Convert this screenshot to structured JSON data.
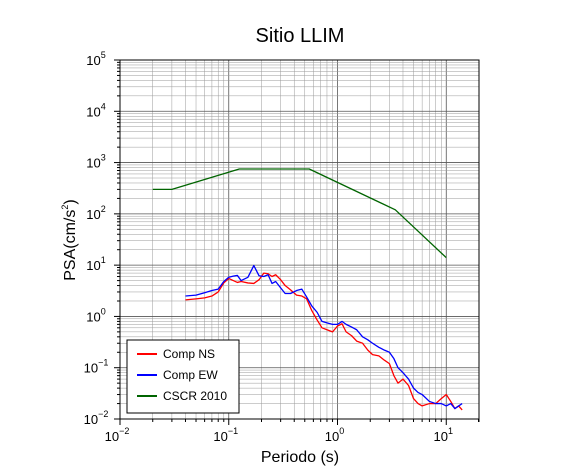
{
  "chart_data": {
    "type": "line",
    "title": "Sitio LLIM",
    "xlabel": "Periodo (s)",
    "ylabel": "PSA(cm/s²)",
    "ylabel_base": "PSA(cm/s",
    "ylabel_sup": "2",
    "ylabel_end": ")",
    "x_scale": "log",
    "y_scale": "log",
    "xlim": [
      0.01,
      20
    ],
    "ylim": [
      0.01,
      100000
    ],
    "grid": true,
    "legend_position": "bottom-left",
    "x_ticks": [
      {
        "base": "10",
        "exp": "−2"
      },
      {
        "base": "10",
        "exp": "−1"
      },
      {
        "base": "10",
        "exp": "0"
      },
      {
        "base": "10",
        "exp": "1"
      }
    ],
    "y_ticks": [
      {
        "base": "10",
        "exp": "−2"
      },
      {
        "base": "10",
        "exp": "−1"
      },
      {
        "base": "10",
        "exp": "0"
      },
      {
        "base": "10",
        "exp": "1"
      },
      {
        "base": "10",
        "exp": "2"
      },
      {
        "base": "10",
        "exp": "3"
      },
      {
        "base": "10",
        "exp": "4"
      },
      {
        "base": "10",
        "exp": "5"
      }
    ],
    "series": [
      {
        "name": "Comp NS",
        "color": "#ff0000",
        "points": [
          [
            0.04,
            2.1
          ],
          [
            0.05,
            2.2
          ],
          [
            0.06,
            2.3
          ],
          [
            0.07,
            2.5
          ],
          [
            0.08,
            3.0
          ],
          [
            0.09,
            4.5
          ],
          [
            0.1,
            5.5
          ],
          [
            0.11,
            5.0
          ],
          [
            0.12,
            4.6
          ],
          [
            0.13,
            4.8
          ],
          [
            0.15,
            4.5
          ],
          [
            0.17,
            4.4
          ],
          [
            0.19,
            5.2
          ],
          [
            0.21,
            7.0
          ],
          [
            0.23,
            6.8
          ],
          [
            0.25,
            6.0
          ],
          [
            0.27,
            6.5
          ],
          [
            0.3,
            5.2
          ],
          [
            0.33,
            4.0
          ],
          [
            0.37,
            3.3
          ],
          [
            0.42,
            2.6
          ],
          [
            0.47,
            2.5
          ],
          [
            0.52,
            2.2
          ],
          [
            0.58,
            1.3
          ],
          [
            0.65,
            0.85
          ],
          [
            0.72,
            0.6
          ],
          [
            0.8,
            0.55
          ],
          [
            0.9,
            0.5
          ],
          [
            1.0,
            0.65
          ],
          [
            1.1,
            0.72
          ],
          [
            1.2,
            0.5
          ],
          [
            1.35,
            0.42
          ],
          [
            1.5,
            0.33
          ],
          [
            1.7,
            0.3
          ],
          [
            1.9,
            0.22
          ],
          [
            2.1,
            0.18
          ],
          [
            2.4,
            0.17
          ],
          [
            2.7,
            0.14
          ],
          [
            3.0,
            0.12
          ],
          [
            3.3,
            0.07
          ],
          [
            3.6,
            0.05
          ],
          [
            4.0,
            0.06
          ],
          [
            4.5,
            0.045
          ],
          [
            5.0,
            0.025
          ],
          [
            5.5,
            0.02
          ],
          [
            6.0,
            0.018
          ],
          [
            7.0,
            0.02
          ],
          [
            8.0,
            0.02
          ],
          [
            9.0,
            0.025
          ],
          [
            10.0,
            0.03
          ],
          [
            11.0,
            0.022
          ],
          [
            12.0,
            0.016
          ],
          [
            13.0,
            0.018
          ],
          [
            14.0,
            0.015
          ]
        ]
      },
      {
        "name": "Comp EW",
        "color": "#0000ff",
        "points": [
          [
            0.04,
            2.5
          ],
          [
            0.05,
            2.6
          ],
          [
            0.06,
            2.9
          ],
          [
            0.07,
            3.2
          ],
          [
            0.08,
            3.4
          ],
          [
            0.09,
            4.8
          ],
          [
            0.1,
            5.8
          ],
          [
            0.11,
            6.1
          ],
          [
            0.12,
            6.3
          ],
          [
            0.13,
            5.0
          ],
          [
            0.15,
            5.8
          ],
          [
            0.17,
            9.8
          ],
          [
            0.19,
            6.2
          ],
          [
            0.21,
            6.0
          ],
          [
            0.23,
            6.5
          ],
          [
            0.25,
            4.4
          ],
          [
            0.27,
            4.8
          ],
          [
            0.3,
            3.6
          ],
          [
            0.33,
            2.8
          ],
          [
            0.37,
            2.8
          ],
          [
            0.42,
            3.2
          ],
          [
            0.47,
            3.4
          ],
          [
            0.52,
            2.4
          ],
          [
            0.58,
            1.6
          ],
          [
            0.65,
            1.2
          ],
          [
            0.72,
            0.8
          ],
          [
            0.8,
            0.75
          ],
          [
            0.9,
            0.7
          ],
          [
            1.0,
            0.7
          ],
          [
            1.1,
            0.8
          ],
          [
            1.2,
            0.7
          ],
          [
            1.35,
            0.62
          ],
          [
            1.5,
            0.55
          ],
          [
            1.7,
            0.4
          ],
          [
            1.9,
            0.35
          ],
          [
            2.1,
            0.3
          ],
          [
            2.4,
            0.25
          ],
          [
            2.7,
            0.22
          ],
          [
            3.0,
            0.2
          ],
          [
            3.3,
            0.15
          ],
          [
            3.6,
            0.1
          ],
          [
            4.0,
            0.08
          ],
          [
            4.5,
            0.06
          ],
          [
            5.0,
            0.04
          ],
          [
            5.5,
            0.033
          ],
          [
            6.0,
            0.03
          ],
          [
            7.0,
            0.022
          ],
          [
            8.0,
            0.02
          ],
          [
            9.0,
            0.02
          ],
          [
            10.0,
            0.018
          ],
          [
            11.0,
            0.02
          ],
          [
            12.0,
            0.016
          ],
          [
            13.0,
            0.018
          ],
          [
            14.0,
            0.02
          ]
        ]
      },
      {
        "name": "CSCR 2010",
        "color": "#006400",
        "points": [
          [
            0.02,
            300
          ],
          [
            0.03,
            300
          ],
          [
            0.125,
            750
          ],
          [
            0.55,
            750
          ],
          [
            3.4,
            120
          ],
          [
            10.0,
            14
          ]
        ]
      }
    ]
  }
}
